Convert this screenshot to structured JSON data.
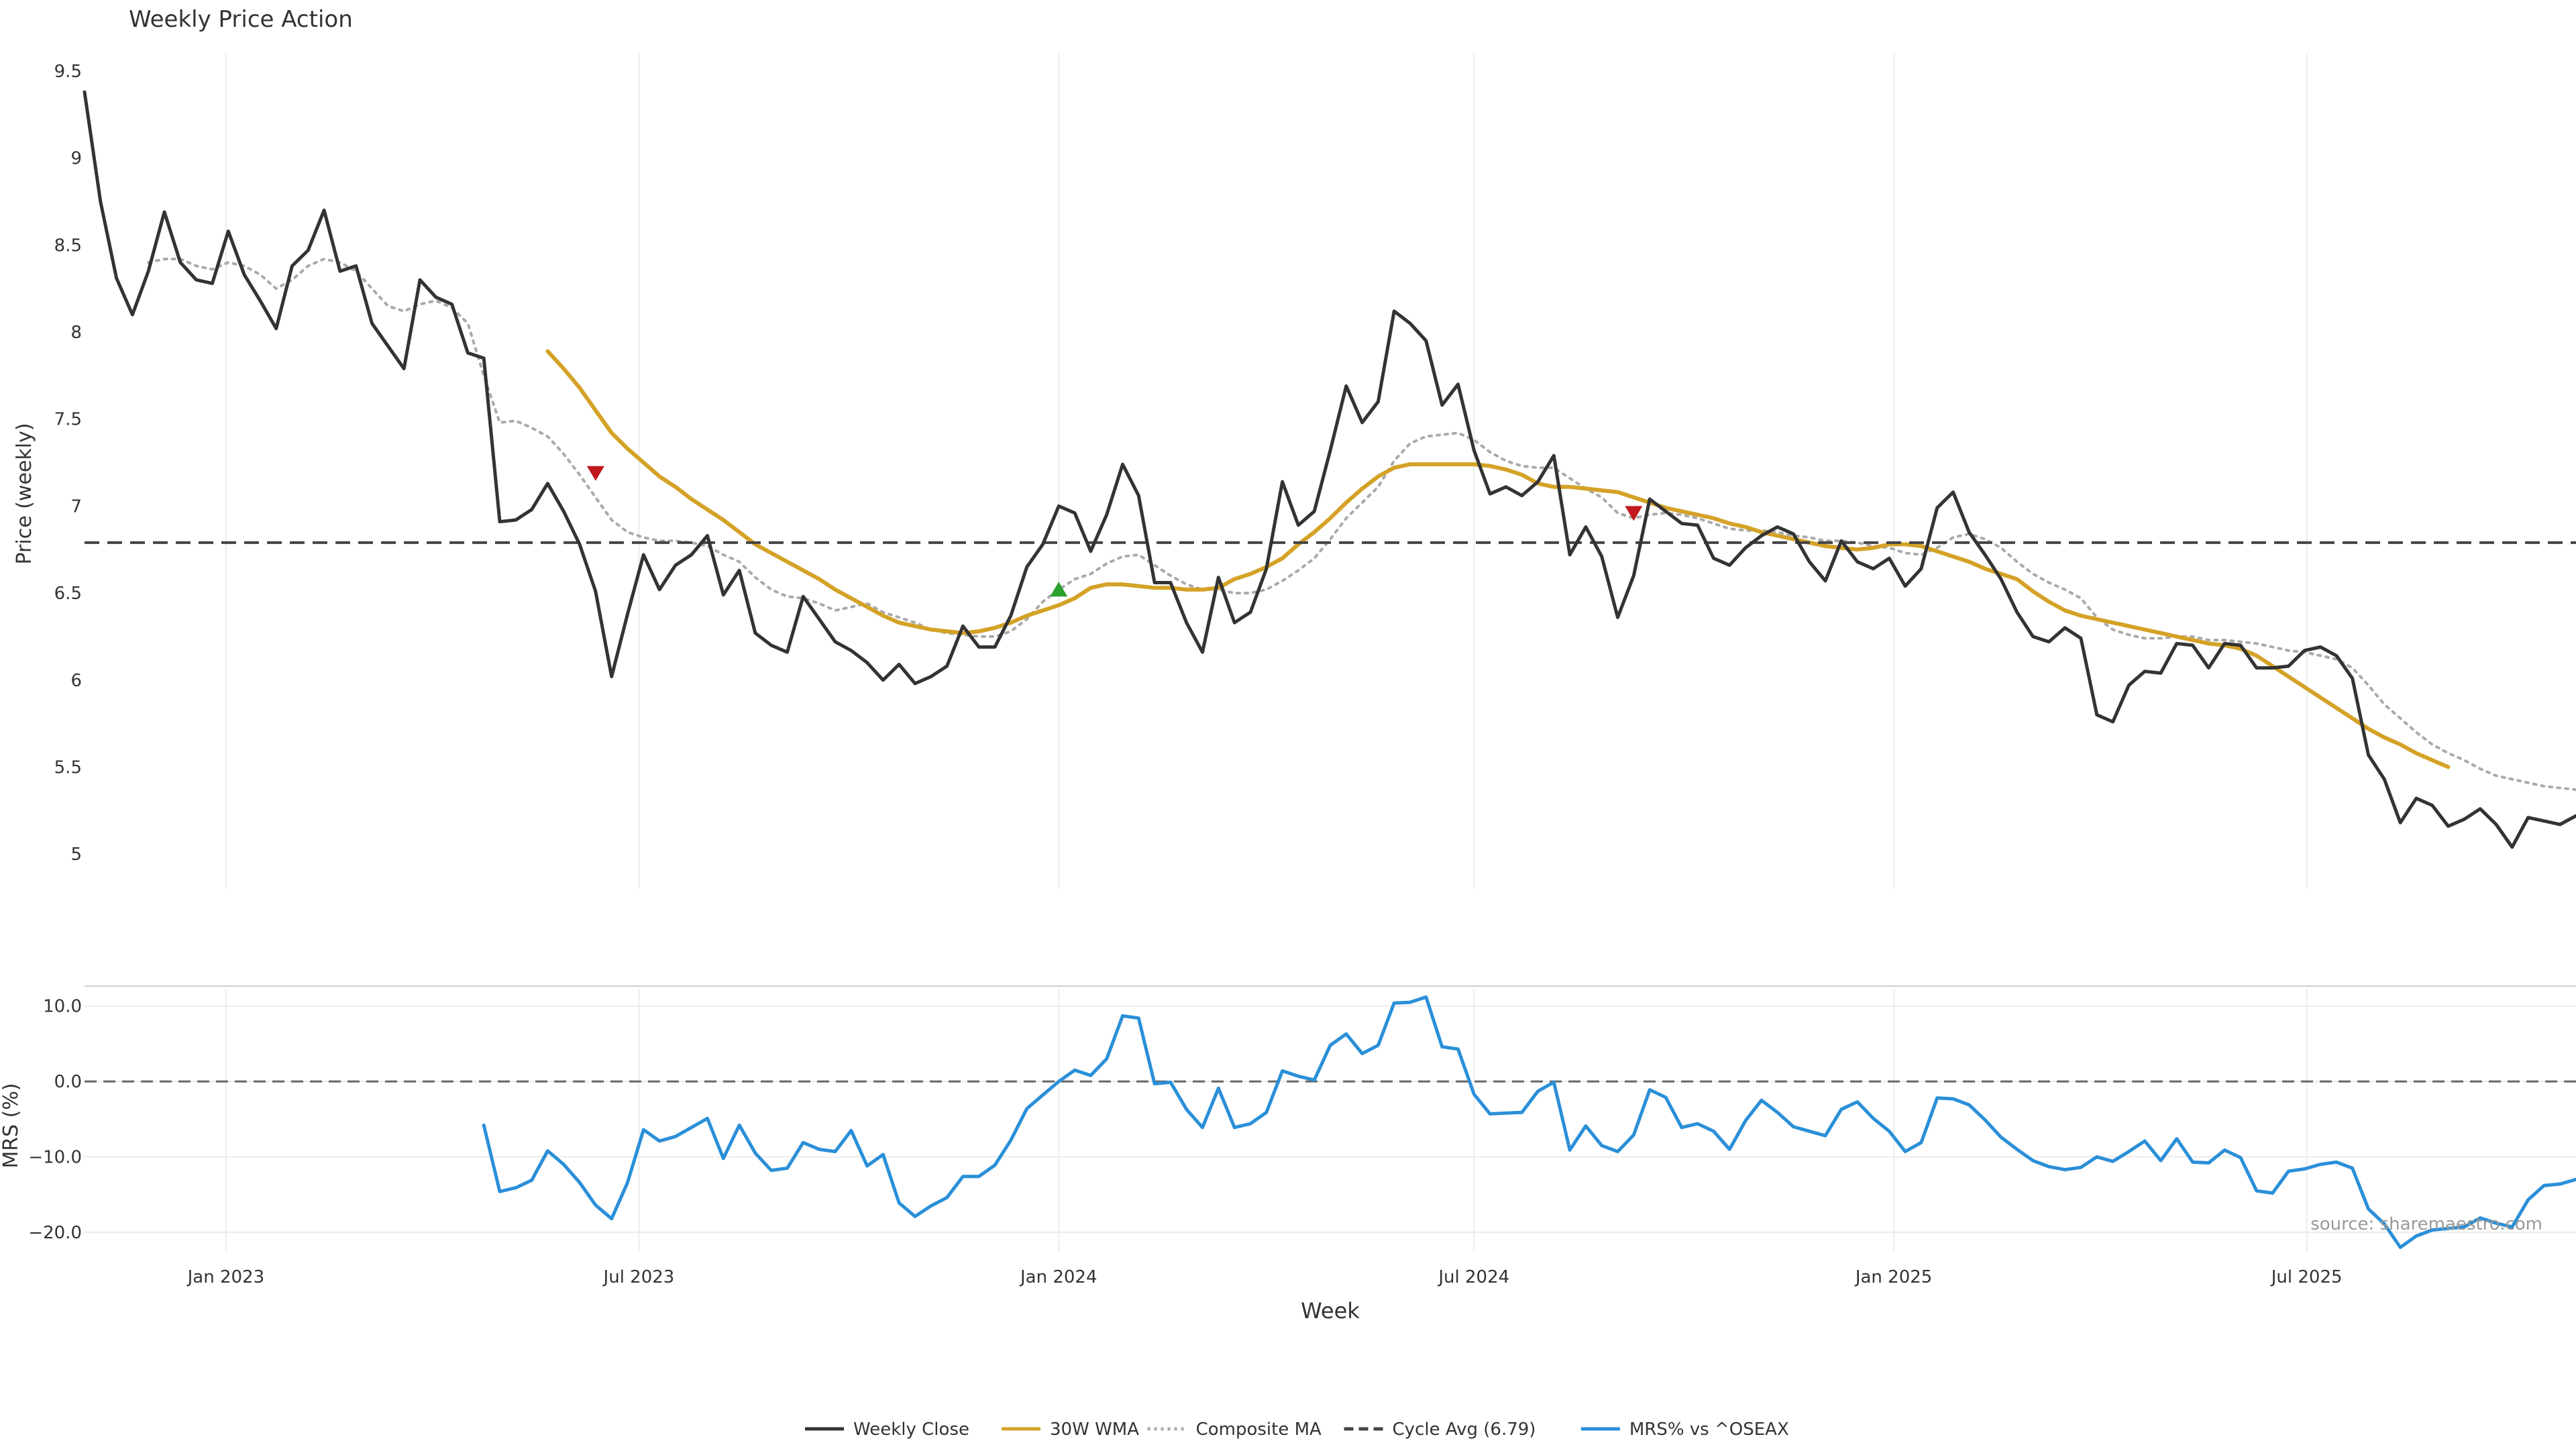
{
  "chart_data": [
    {
      "type": "line",
      "title": "Weekly Price Action",
      "ylabel": "Price (weekly)",
      "ylim": [
        4.8,
        9.6
      ],
      "yticks": [
        {
          "v": 5,
          "label": "5"
        },
        {
          "v": 5.5,
          "label": "5.5"
        },
        {
          "v": 6,
          "label": "6"
        },
        {
          "v": 6.5,
          "label": "6.5"
        },
        {
          "v": 7,
          "label": "7"
        },
        {
          "v": 7.5,
          "label": "7.5"
        },
        {
          "v": 8,
          "label": "8"
        },
        {
          "v": 8.5,
          "label": "8.5"
        },
        {
          "v": 9,
          "label": "9"
        },
        {
          "v": 9.5,
          "label": "9.5"
        }
      ],
      "x_start": "2022-10-31",
      "xlim": [
        "2022-10-31",
        "2025-10-27"
      ],
      "grid": true,
      "series": [
        {
          "name": "Weekly Close",
          "color": "#333333",
          "style": "solid",
          "values": [
            9.38,
            8.75,
            8.31,
            8.1,
            8.35,
            8.69,
            8.4,
            8.3,
            8.28,
            8.58,
            8.33,
            8.18,
            8.02,
            8.38,
            8.47,
            8.7,
            8.35,
            8.38,
            8.05,
            7.92,
            7.79,
            8.3,
            8.2,
            8.16,
            7.88,
            7.85,
            6.91,
            6.92,
            6.98,
            7.13,
            6.97,
            6.78,
            6.51,
            6.02,
            6.38,
            6.72,
            6.52,
            6.66,
            6.72,
            6.83,
            6.49,
            6.63,
            6.27,
            6.2,
            6.16,
            6.48,
            6.35,
            6.22,
            6.17,
            6.1,
            6.0,
            6.09,
            5.98,
            6.02,
            6.08,
            6.31,
            6.19,
            6.19,
            6.37,
            6.65,
            6.78,
            7.0,
            6.96,
            6.74,
            6.95,
            7.24,
            7.06,
            6.56,
            6.56,
            6.33,
            6.16,
            6.59,
            6.33,
            6.39,
            6.64,
            7.14,
            6.89,
            6.97,
            7.32,
            7.69,
            7.48,
            7.6,
            8.12,
            8.05,
            7.95,
            7.58,
            7.7,
            7.32,
            7.07,
            7.11,
            7.06,
            7.14,
            7.29,
            6.72,
            6.88,
            6.71,
            6.36,
            6.6,
            7.04,
            6.97,
            6.9,
            6.89,
            6.7,
            6.66,
            6.76,
            6.83,
            6.88,
            6.84,
            6.68,
            6.57,
            6.8,
            6.68,
            6.64,
            6.7,
            6.54,
            6.64,
            6.99,
            7.08,
            6.85,
            6.72,
            6.58,
            6.39,
            6.25,
            6.22,
            6.3,
            6.24,
            5.8,
            5.76,
            5.97,
            6.05,
            6.04,
            6.21,
            6.2,
            6.07,
            6.21,
            6.2,
            6.07,
            6.07,
            6.08,
            6.17,
            6.19,
            6.14,
            6.01,
            5.57,
            5.43,
            5.18,
            5.32,
            5.28,
            5.16,
            5.2,
            5.26,
            5.17,
            5.04,
            5.21,
            5.19,
            5.17,
            5.22
          ]
        },
        {
          "name": "30W WMA",
          "color": "#d4a227",
          "style": "solid",
          "values": [
            null,
            null,
            null,
            null,
            null,
            null,
            null,
            null,
            null,
            null,
            null,
            null,
            null,
            null,
            null,
            null,
            null,
            null,
            null,
            null,
            null,
            null,
            null,
            null,
            null,
            null,
            null,
            null,
            null,
            7.89,
            7.79,
            7.68,
            7.55,
            7.42,
            7.33,
            7.25,
            7.17,
            7.11,
            7.04,
            6.98,
            6.92,
            6.85,
            6.78,
            6.73,
            6.68,
            6.63,
            6.58,
            6.52,
            6.47,
            6.42,
            6.37,
            6.33,
            6.31,
            6.29,
            6.28,
            6.27,
            6.28,
            6.3,
            6.33,
            6.37,
            6.4,
            6.43,
            6.47,
            6.53,
            6.55,
            6.55,
            6.54,
            6.53,
            6.53,
            6.52,
            6.52,
            6.53,
            6.58,
            6.61,
            6.65,
            6.7,
            6.78,
            6.85,
            6.93,
            7.02,
            7.1,
            7.17,
            7.22,
            7.24,
            7.24,
            7.24,
            7.24,
            7.24,
            7.23,
            7.21,
            7.18,
            7.13,
            7.11,
            7.11,
            7.1,
            7.09,
            7.08,
            7.05,
            7.02,
            6.99,
            6.97,
            6.95,
            6.93,
            6.9,
            6.88,
            6.85,
            6.83,
            6.81,
            6.79,
            6.77,
            6.76,
            6.75,
            6.76,
            6.78,
            6.78,
            6.77,
            6.74,
            6.71,
            6.68,
            6.64,
            6.61,
            6.58,
            6.51,
            6.45,
            6.4,
            6.37,
            6.35,
            6.33,
            6.31,
            6.29,
            6.27,
            6.25,
            6.23,
            6.21,
            6.2,
            6.18,
            6.14,
            6.08,
            6.02,
            5.96,
            5.9,
            5.84,
            5.78,
            5.72,
            5.67,
            5.63,
            5.58,
            5.54,
            5.5
          ]
        },
        {
          "name": "Composite MA",
          "color": "#aaaaaa",
          "style": "dotted",
          "values": [
            null,
            null,
            null,
            null,
            8.4,
            8.42,
            8.42,
            8.38,
            8.36,
            8.4,
            8.38,
            8.33,
            8.25,
            8.3,
            8.38,
            8.42,
            8.4,
            8.35,
            8.25,
            8.15,
            8.12,
            8.16,
            8.18,
            8.14,
            8.05,
            7.75,
            7.48,
            7.49,
            7.45,
            7.4,
            7.3,
            7.18,
            7.05,
            6.92,
            6.85,
            6.82,
            6.8,
            6.8,
            6.79,
            6.77,
            6.72,
            6.68,
            6.59,
            6.52,
            6.48,
            6.47,
            6.44,
            6.4,
            6.42,
            6.44,
            6.39,
            6.36,
            6.33,
            6.29,
            6.27,
            6.26,
            6.25,
            6.25,
            6.28,
            6.35,
            6.45,
            6.52,
            6.58,
            6.61,
            6.67,
            6.71,
            6.72,
            6.66,
            6.6,
            6.55,
            6.52,
            6.52,
            6.5,
            6.5,
            6.52,
            6.57,
            6.63,
            6.7,
            6.81,
            6.93,
            7.02,
            7.11,
            7.26,
            7.36,
            7.4,
            7.41,
            7.42,
            7.38,
            7.31,
            7.26,
            7.23,
            7.22,
            7.22,
            7.16,
            7.1,
            7.05,
            6.96,
            6.93,
            6.95,
            6.96,
            6.95,
            6.93,
            6.9,
            6.87,
            6.86,
            6.86,
            6.85,
            6.83,
            6.82,
            6.8,
            6.8,
            6.79,
            6.77,
            6.76,
            6.73,
            6.72,
            6.76,
            6.82,
            6.84,
            6.81,
            6.76,
            6.68,
            6.61,
            6.56,
            6.52,
            6.47,
            6.36,
            6.29,
            6.26,
            6.24,
            6.24,
            6.25,
            6.25,
            6.23,
            6.23,
            6.22,
            6.21,
            6.19,
            6.17,
            6.16,
            6.14,
            6.12,
            6.07,
            5.97,
            5.86,
            5.78,
            5.7,
            5.63,
            5.58,
            5.54,
            5.49,
            5.45,
            5.43,
            5.41,
            5.39,
            5.38,
            5.37
          ]
        },
        {
          "name": "Cycle Avg (6.79)",
          "color": "#444444",
          "style": "dashed",
          "constant": 6.79
        }
      ],
      "markers": [
        {
          "week": 32,
          "value": 7.19,
          "shape": "triangle-down",
          "color": "#c0181e"
        },
        {
          "week": 61,
          "value": 6.52,
          "shape": "triangle-up",
          "color": "#2ca02c"
        },
        {
          "week": 97,
          "value": 6.96,
          "shape": "triangle-down",
          "color": "#c0181e"
        }
      ]
    },
    {
      "type": "line",
      "ylabel": "MRS (%)",
      "ylim": [
        -22.5,
        12.2
      ],
      "yticks": [
        {
          "v": 10,
          "label": "10.0"
        },
        {
          "v": 0,
          "label": "0.0"
        },
        {
          "v": -10,
          "label": "−10.0"
        },
        {
          "v": -20,
          "label": "−20.0"
        }
      ],
      "zero_line": 0,
      "xlabel": "Week",
      "xticks": [
        {
          "date": "2023-01-01",
          "label": "Jan 2023"
        },
        {
          "date": "2023-07-01",
          "label": "Jul 2023"
        },
        {
          "date": "2024-01-01",
          "label": "Jan 2024"
        },
        {
          "date": "2024-07-01",
          "label": "Jul 2024"
        },
        {
          "date": "2025-01-01",
          "label": "Jan 2025"
        },
        {
          "date": "2025-07-01",
          "label": "Jul 2025"
        }
      ],
      "series": [
        {
          "name": "MRS% vs ^OSEAX",
          "color": "#2a8fd8",
          "values": [
            null,
            null,
            null,
            null,
            null,
            null,
            null,
            null,
            null,
            null,
            null,
            null,
            null,
            null,
            null,
            null,
            null,
            null,
            null,
            null,
            null,
            null,
            null,
            null,
            null,
            -5.8,
            -14.6,
            -14.1,
            -13.1,
            -9.2,
            -11.0,
            -13.4,
            -16.4,
            -18.2,
            -13.4,
            -6.4,
            -7.9,
            -7.3,
            -6.1,
            -4.9,
            -10.2,
            -5.8,
            -9.5,
            -11.8,
            -11.5,
            -8.1,
            -9.0,
            -9.3,
            -6.5,
            -11.2,
            -9.7,
            -16.1,
            -17.9,
            -16.5,
            -15.4,
            -12.6,
            -12.6,
            -11.1,
            -7.8,
            -3.6,
            -1.8,
            0.0,
            1.5,
            0.8,
            3.0,
            8.7,
            8.4,
            -0.3,
            -0.1,
            -3.7,
            -6.1,
            -0.9,
            -6.1,
            -5.6,
            -4.1,
            1.4,
            0.7,
            0.2,
            4.8,
            6.3,
            3.7,
            4.8,
            10.4,
            10.5,
            11.2,
            4.6,
            4.3,
            -1.7,
            -4.3,
            -4.2,
            -4.1,
            -1.3,
            -0.1,
            -9.1,
            -5.9,
            -8.5,
            -9.3,
            -7.1,
            -1.1,
            -2.1,
            -6.1,
            -5.6,
            -6.6,
            -9.0,
            -5.2,
            -2.5,
            -4.1,
            -6.0,
            -6.6,
            -7.2,
            -3.7,
            -2.7,
            -4.9,
            -6.6,
            -9.3,
            -8.1,
            -2.2,
            -2.3,
            -3.1,
            -5.1,
            -7.4,
            -9.0,
            -10.5,
            -11.3,
            -11.7,
            -11.4,
            -10.0,
            -10.6,
            -9.3,
            -7.9,
            -10.5,
            -7.6,
            -10.7,
            -10.8,
            -9.1,
            -10.1,
            -14.5,
            -14.8,
            -11.9,
            -11.6,
            -11.0,
            -10.7,
            -11.5,
            -16.9,
            -18.9,
            -22.0,
            -20.5,
            -19.7,
            -19.5,
            -19.3,
            -18.1,
            -18.8,
            -19.3,
            -15.7,
            -13.8,
            -13.6,
            -13.0
          ]
        }
      ],
      "annotation": "source: sharemaestro.com"
    }
  ],
  "legend": {
    "placement": "bottom",
    "items": [
      {
        "label": "Weekly Close",
        "color": "#333333",
        "style": "solid"
      },
      {
        "label": "30W WMA",
        "color": "#d4a227",
        "style": "solid"
      },
      {
        "label": "Composite MA",
        "color": "#aaaaaa",
        "style": "dotted"
      },
      {
        "label": "Cycle Avg (6.79)",
        "color": "#444444",
        "style": "dashed"
      },
      {
        "label": "MRS% vs ^OSEAX",
        "color": "#2a8fd8",
        "style": "solid"
      }
    ]
  }
}
